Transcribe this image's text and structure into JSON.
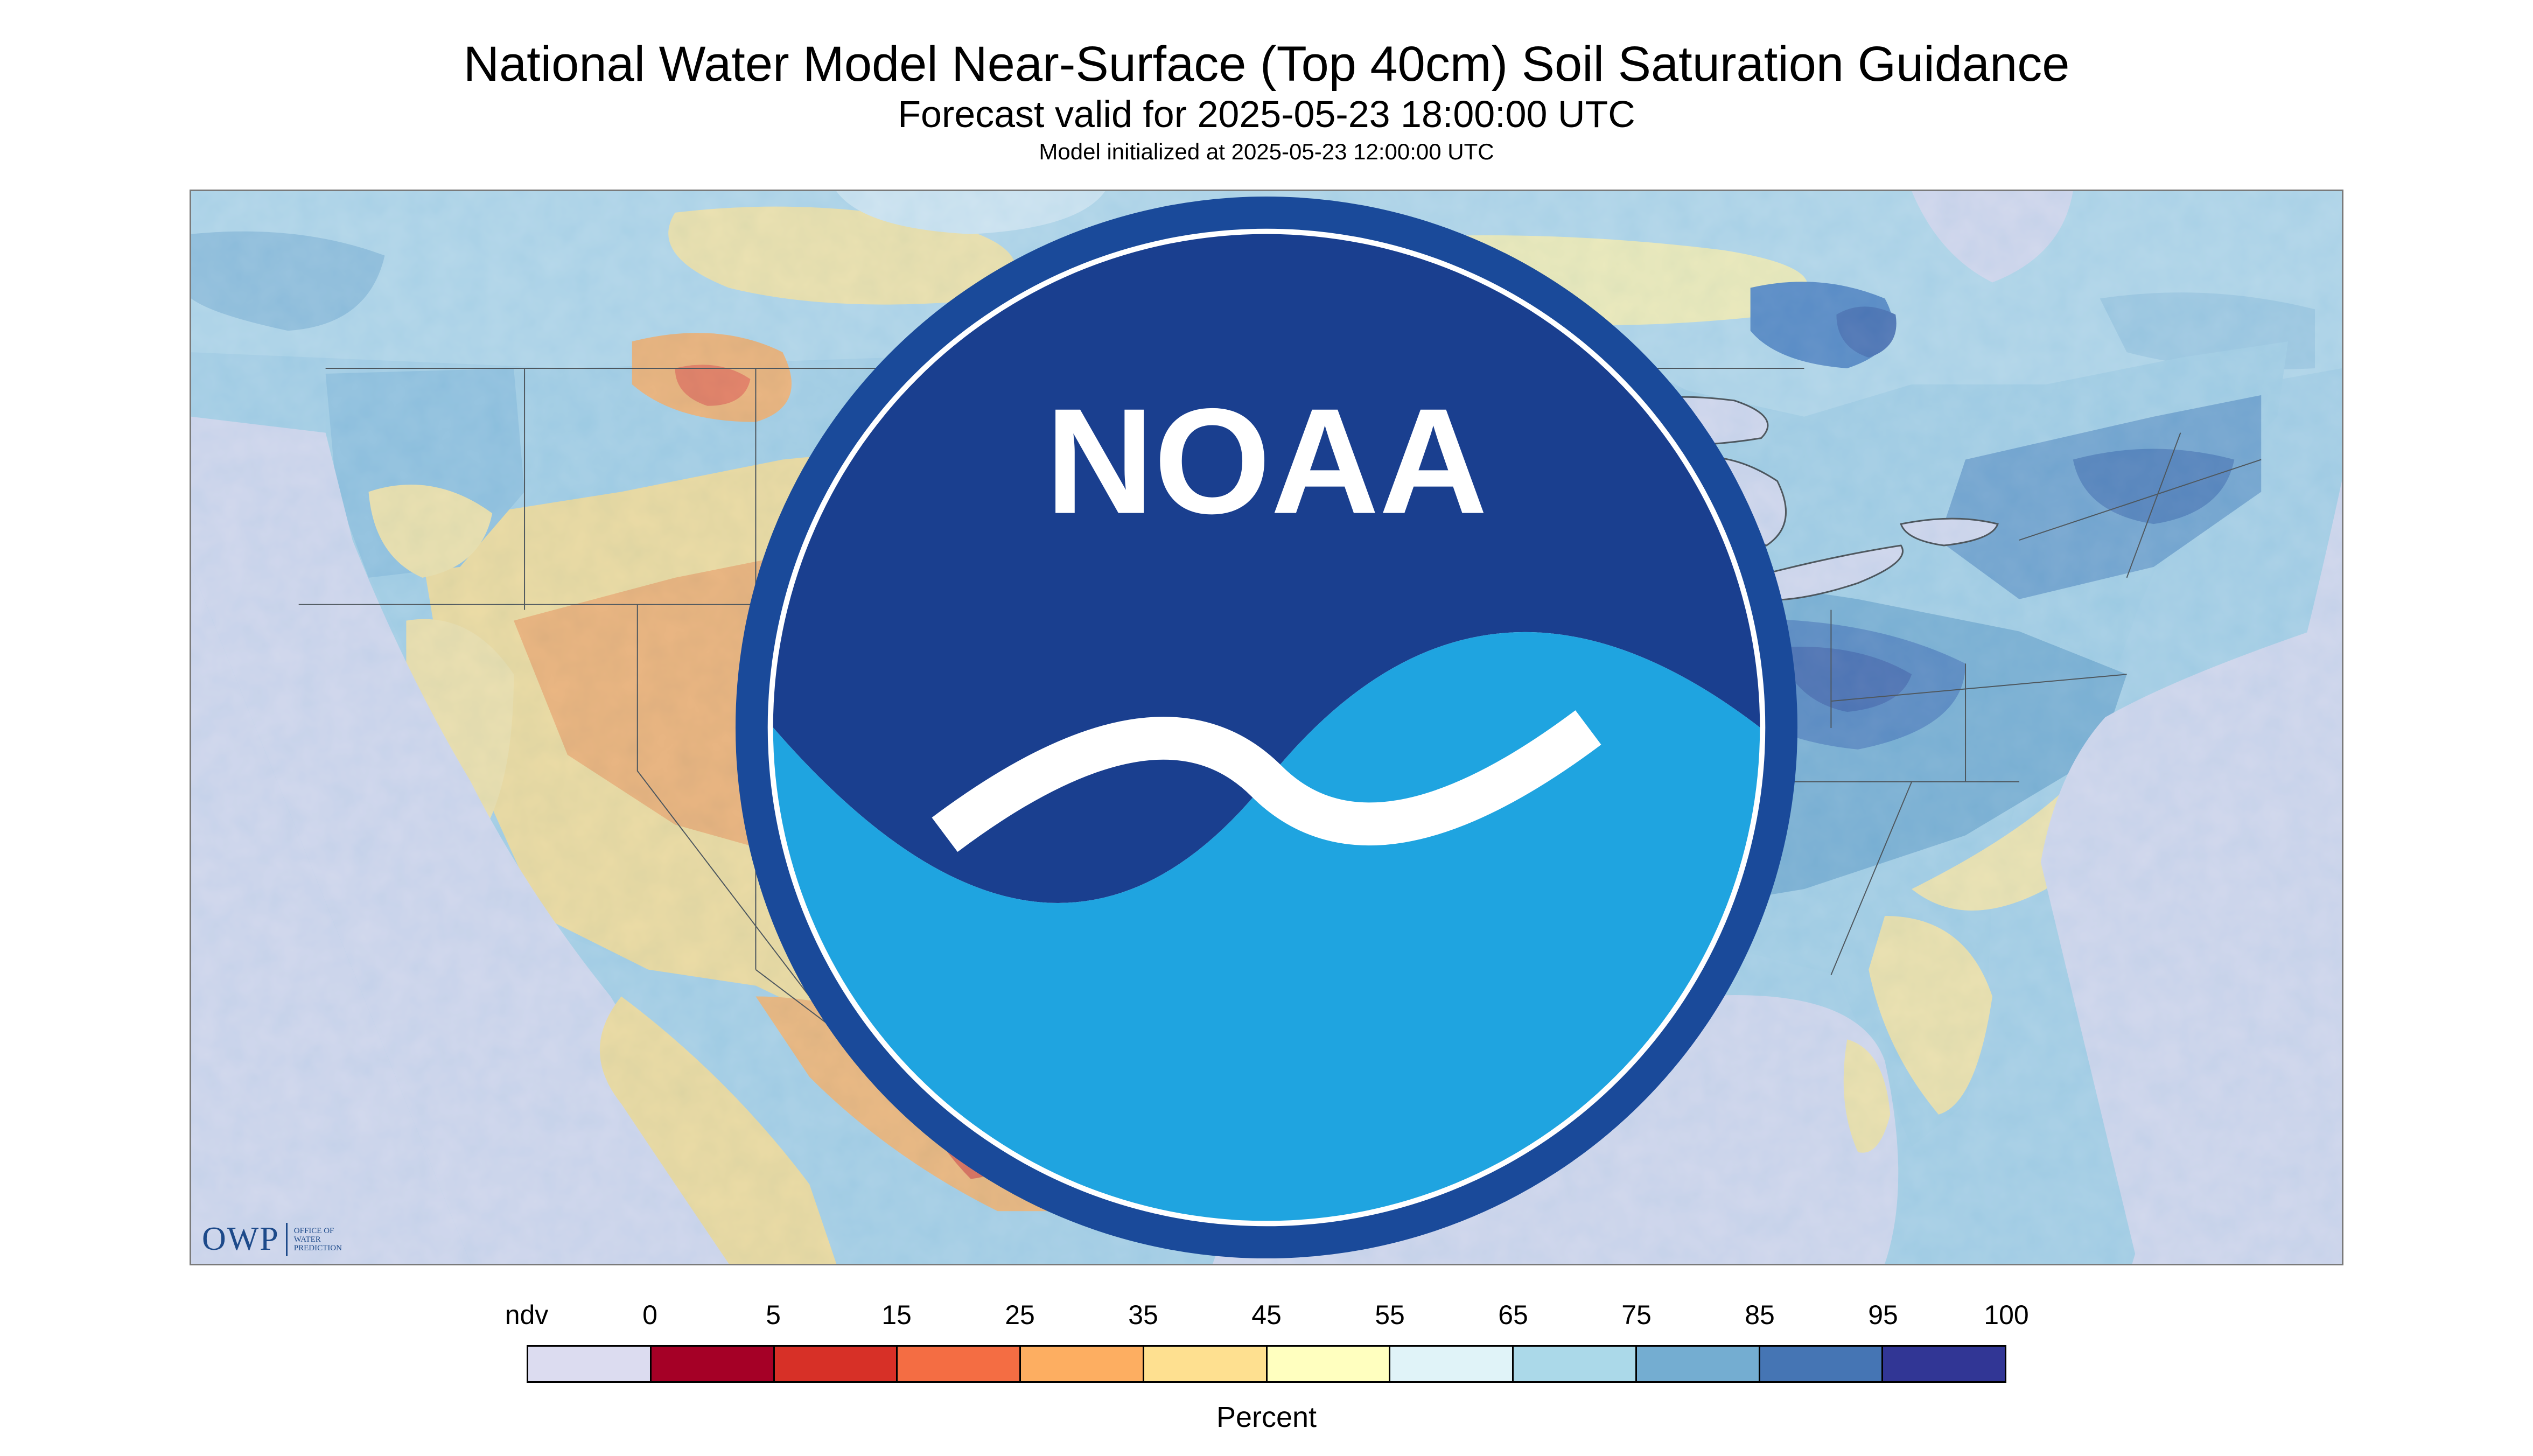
{
  "header": {
    "title": "National Water Model Near-Surface (Top 40cm) Soil Saturation Guidance",
    "subtitle": "Forecast valid for 2025-05-23 18:00:00 UTC",
    "init_line": "Model initialized at 2025-05-23 12:00:00 UTC"
  },
  "map": {
    "region": "CONUS",
    "no_data_color": "#dcdcf0",
    "ocean_color": "#dcdcf0",
    "border_color": "#333333"
  },
  "logos": {
    "owp": {
      "letters": "OWP",
      "text_line1": "OFFICE OF",
      "text_line2": "WATER",
      "text_line3": "PREDICTION"
    },
    "noaa": {
      "text": "NOAA",
      "icon": "noaa-logo-icon"
    }
  },
  "legend": {
    "unit": "Percent",
    "ticks": [
      "ndv",
      "0",
      "5",
      "15",
      "25",
      "35",
      "45",
      "55",
      "65",
      "75",
      "85",
      "95",
      "100"
    ],
    "swatches": [
      {
        "from": "ndv",
        "to": "0",
        "color": "#dcdcf0"
      },
      {
        "from": "0",
        "to": "5",
        "color": "#a50026"
      },
      {
        "from": "5",
        "to": "15",
        "color": "#d73027"
      },
      {
        "from": "15",
        "to": "25",
        "color": "#f46d43"
      },
      {
        "from": "25",
        "to": "35",
        "color": "#fdae61"
      },
      {
        "from": "35",
        "to": "45",
        "color": "#fee090"
      },
      {
        "from": "45",
        "to": "55",
        "color": "#ffffbf"
      },
      {
        "from": "55",
        "to": "65",
        "color": "#e0f3f8"
      },
      {
        "from": "65",
        "to": "75",
        "color": "#abd9e9"
      },
      {
        "from": "75",
        "to": "85",
        "color": "#74add1"
      },
      {
        "from": "85",
        "to": "95",
        "color": "#4575b4"
      },
      {
        "from": "95",
        "to": "100",
        "color": "#313695"
      }
    ]
  }
}
